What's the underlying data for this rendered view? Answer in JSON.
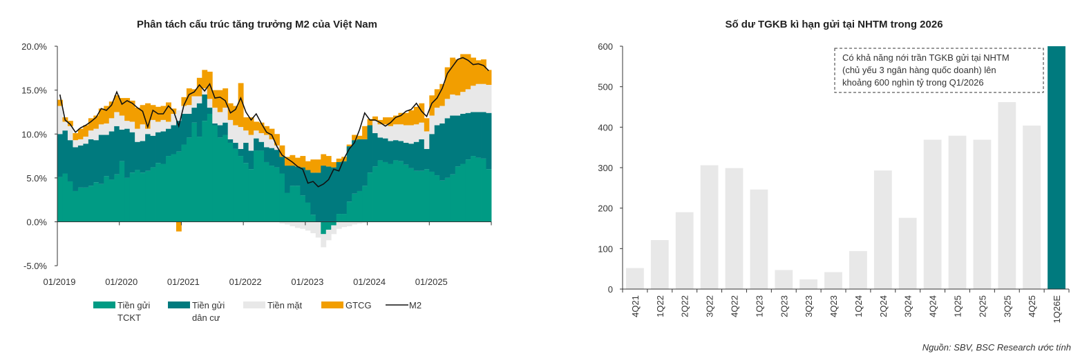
{
  "chart_data": [
    {
      "type": "bar",
      "stacked": true,
      "title": "Phân tách cấu trúc tăng trưởng M2 của Việt Nam",
      "xlabel": "",
      "ylabel": "",
      "ylim": [
        -5,
        20
      ],
      "yticks": [
        "20.0%",
        "15.0%",
        "10.0%",
        "5.0%",
        "0.0%",
        "-5.0%"
      ],
      "ytick_values": [
        20,
        15,
        10,
        5,
        0,
        -5
      ],
      "xticks": [
        "01/2019",
        "01/2020",
        "01/2021",
        "01/2022",
        "01/2023",
        "01/2024",
        "01/2025"
      ],
      "x_start": "01/2019",
      "months": 84,
      "legend_position": "bottom",
      "series": [
        {
          "name": "Tiền gửi TCKT",
          "legend_lines": [
            "Tiền gửi",
            "TCKT"
          ],
          "color": "#009B84",
          "values": [
            5.1,
            5.5,
            4.6,
            3.5,
            3.9,
            3.9,
            4.1,
            4.5,
            4.3,
            5.2,
            4.8,
            5.4,
            6.9,
            5.0,
            5.6,
            5.9,
            5.6,
            5.8,
            6.2,
            6.7,
            6.6,
            7.5,
            7.7,
            8.0,
            8.8,
            9.6,
            11.3,
            9.7,
            11.5,
            12.3,
            11.0,
            9.6,
            9.9,
            9.0,
            8.3,
            7.5,
            6.7,
            6.0,
            8.1,
            8.1,
            6.8,
            6.4,
            6.2,
            5.5,
            3.3,
            4.1,
            4.1,
            3.0,
            2.2,
            0.8,
            0.0,
            -1.4,
            -0.9,
            -0.4,
            0.9,
            0.9,
            2.3,
            3.2,
            3.5,
            4.1,
            5.6,
            6.3,
            7.0,
            6.8,
            6.6,
            7.0,
            6.9,
            6.5,
            6.1,
            5.8,
            5.8,
            6.0,
            5.7,
            5.3,
            4.7,
            5.0,
            5.4,
            6.3,
            6.6,
            7.1,
            7.5,
            7.3,
            7.2,
            6.0
          ]
        },
        {
          "name": "Tiền gửi dân cư",
          "legend_lines": [
            "Tiền gửi",
            "dân cư"
          ],
          "color": "#007A7E",
          "values": [
            4.9,
            4.9,
            4.7,
            5.0,
            4.8,
            5.0,
            5.3,
            4.8,
            5.6,
            4.7,
            5.5,
            5.5,
            3.6,
            5.6,
            4.6,
            3.2,
            3.6,
            4.2,
            3.6,
            3.5,
            3.7,
            3.1,
            3.3,
            3.5,
            3.5,
            2.7,
            1.7,
            3.8,
            3.0,
            0.7,
            0.2,
            1.4,
            1.4,
            0.4,
            0.7,
            0.8,
            2.3,
            2.1,
            1.4,
            1.0,
            1.7,
            2.0,
            2.0,
            1.9,
            3.1,
            2.3,
            2.2,
            3.2,
            3.7,
            4.8,
            5.6,
            6.4,
            6.3,
            6.2,
            5.9,
            6.0,
            6.3,
            6.1,
            5.9,
            5.3,
            5.4,
            3.8,
            2.6,
            2.7,
            2.6,
            2.3,
            2.3,
            2.5,
            2.8,
            3.3,
            3.6,
            2.3,
            4.3,
            5.7,
            6.5,
            6.8,
            6.7,
            5.8,
            5.7,
            5.3,
            5.0,
            5.2,
            5.3,
            6.4
          ]
        },
        {
          "name": "Tiền mặt",
          "legend_lines": [
            "Tiền mặt"
          ],
          "color": "#E8E8E8",
          "values": [
            3.2,
            1.0,
            1.6,
            0.8,
            0.7,
            0.8,
            1.0,
            1.3,
            1.2,
            1.3,
            1.5,
            1.6,
            1.6,
            0.9,
            1.2,
            1.5,
            1.9,
            0.6,
            1.8,
            1.2,
            1.3,
            0.8,
            1.3,
            1.2,
            0.9,
            1.0,
            1.3,
            0.8,
            0.7,
            1.0,
            1.8,
            1.5,
            1.7,
            2.2,
            2.0,
            2.5,
            1.4,
            1.8,
            0.9,
            1.0,
            1.4,
            1.0,
            0.5,
            -0.2,
            -0.3,
            -0.5,
            -0.7,
            -0.8,
            -1.0,
            -1.3,
            -1.8,
            -1.5,
            -1.2,
            -1.0,
            -0.8,
            -0.6,
            -0.5,
            -0.3,
            -0.2,
            -0.1,
            0.0,
            1.4,
            1.5,
            1.6,
            1.7,
            1.8,
            1.9,
            2.0,
            2.1,
            2.0,
            1.9,
            2.0,
            2.1,
            2.0,
            2.0,
            2.2,
            2.4,
            2.3,
            2.5,
            2.7,
            3.0,
            3.2,
            3.2,
            3.2
          ]
        },
        {
          "name": "GTCG",
          "legend_lines": [
            "GTCG"
          ],
          "color": "#F29E00",
          "values": [
            0.7,
            0.5,
            0.6,
            0.8,
            1.2,
            1.3,
            1.4,
            1.5,
            1.8,
            2.0,
            1.9,
            1.9,
            2.0,
            2.6,
            2.4,
            2.4,
            2.2,
            2.9,
            1.7,
            1.7,
            1.6,
            2.2,
            0.6,
            -1.1,
            1.0,
            1.9,
            0.8,
            2.1,
            2.1,
            3.1,
            2.0,
            2.5,
            2.2,
            1.9,
            2.2,
            5.0,
            1.5,
            2.0,
            1.0,
            1.2,
            1.0,
            1.2,
            1.3,
            1.3,
            1.0,
            1.2,
            1.0,
            1.3,
            1.0,
            1.5,
            1.5,
            1.3,
            1.2,
            0.6,
            0.4,
            0.5,
            0.2,
            0.6,
            0.4,
            1.5,
            0.7,
            0.5,
            0.5,
            0.8,
            1.0,
            1.0,
            1.3,
            1.4,
            1.7,
            2.0,
            2.2,
            1.5,
            2.3,
            2.1,
            2.5,
            3.6,
            4.2,
            4.1,
            4.3,
            4.0,
            3.2,
            2.7,
            2.8,
            1.7
          ]
        },
        {
          "name": "M2",
          "legend_lines": [
            "M2"
          ],
          "color": "#111111",
          "type": "line",
          "values": [
            14.5,
            11.6,
            11.1,
            10.2,
            10.7,
            11.0,
            11.4,
            11.9,
            12.9,
            12.7,
            13.3,
            14.8,
            13.4,
            13.8,
            13.5,
            13.0,
            12.6,
            10.8,
            12.7,
            12.3,
            12.3,
            13.2,
            12.6,
            10.9,
            13.3,
            14.5,
            14.8,
            15.6,
            14.9,
            15.7,
            14.1,
            14.2,
            13.8,
            12.4,
            12.8,
            14.1,
            12.5,
            11.6,
            12.3,
            11.2,
            10.2,
            9.9,
            8.6,
            7.6,
            7.2,
            6.8,
            6.3,
            6.0,
            4.4,
            4.6,
            4.0,
            4.3,
            4.8,
            6.0,
            5.8,
            7.2,
            8.3,
            9.0,
            10.5,
            12.4,
            11.6,
            11.6,
            11.3,
            10.9,
            11.3,
            11.9,
            12.1,
            12.6,
            12.8,
            13.5,
            12.6,
            12.0,
            13.5,
            14.1,
            15.2,
            16.9,
            17.7,
            18.5,
            18.7,
            18.4,
            17.9,
            18.0,
            17.8,
            17.2
          ]
        }
      ]
    },
    {
      "type": "bar",
      "title": "Số dư TGKB kì hạn gửi tại NHTM trong 2026",
      "xlabel": "",
      "ylabel": "",
      "ylim": [
        0,
        600
      ],
      "yticks": [
        "600",
        "500",
        "400",
        "300",
        "200",
        "100",
        "0"
      ],
      "ytick_values": [
        600,
        500,
        400,
        300,
        200,
        100,
        0
      ],
      "categories": [
        "4Q21",
        "1Q22",
        "2Q22",
        "3Q22",
        "4Q22",
        "1Q23",
        "2Q23",
        "3Q23",
        "4Q23",
        "1Q24",
        "2Q24",
        "3Q24",
        "4Q24",
        "1Q25",
        "2Q25",
        "3Q25",
        "4Q25",
        "1Q26E"
      ],
      "values": [
        52,
        121,
        190,
        306,
        299,
        246,
        47,
        24,
        42,
        94,
        293,
        176,
        369,
        379,
        369,
        462,
        404,
        600
      ],
      "colors": {
        "actual": "#E8E8E8",
        "estimate": "#007A7E"
      },
      "annotation": [
        "Có khả năng nới trần TGKB gửi tại NHTM",
        "(chủ yếu 3 ngân hàng quốc doanh) lên",
        "khoảng 600 nghìn tỷ trong Q1/2026"
      ]
    }
  ],
  "source": "Nguồn: SBV, BSC Research ước tính"
}
